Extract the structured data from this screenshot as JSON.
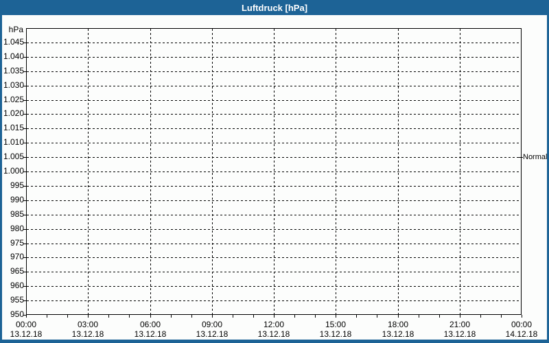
{
  "window": {
    "title": "Luftdruck [hPa]",
    "colors": {
      "frame_blue": "#1d6396",
      "background": "#fcfdfc",
      "grid_and_text": "#000000",
      "title_text": "#ffffff"
    }
  },
  "chart_data": {
    "type": "line",
    "title": "Luftdruck [hPa]",
    "ylabel": "hPa",
    "xlabel": "",
    "ylim": [
      950,
      1050
    ],
    "xlim_hours": [
      0,
      24
    ],
    "grid": "dashed; horizontal every 5 hPa, vertical every 3 hours, hourly minor ticks on x-axis",
    "legend": "none",
    "y_axis": {
      "unit": "hPa",
      "tick_labels": [
        "1.045",
        "1.040",
        "1.035",
        "1.030",
        "1.025",
        "1.020",
        "1.015",
        "1.010",
        "1.005",
        "1.000",
        "995",
        "990",
        "985",
        "980",
        "975",
        "970",
        "965",
        "960",
        "955",
        "950"
      ],
      "tick_values": [
        1045,
        1040,
        1035,
        1030,
        1025,
        1020,
        1015,
        1010,
        1005,
        1000,
        995,
        990,
        985,
        980,
        975,
        970,
        965,
        960,
        955,
        950
      ]
    },
    "x_axis": {
      "times": [
        "00:00",
        "03:00",
        "06:00",
        "09:00",
        "12:00",
        "15:00",
        "18:00",
        "21:00",
        "00:00"
      ],
      "dates": [
        "13.12.18",
        "13.12.18",
        "13.12.18",
        "13.12.18",
        "13.12.18",
        "13.12.18",
        "13.12.18",
        "13.12.18",
        "14.12.18"
      ],
      "minor_tick_interval_hours": 1
    },
    "series": [],
    "annotations": [
      {
        "label": "Normal",
        "value_hpa": 1005,
        "side": "right"
      }
    ]
  }
}
